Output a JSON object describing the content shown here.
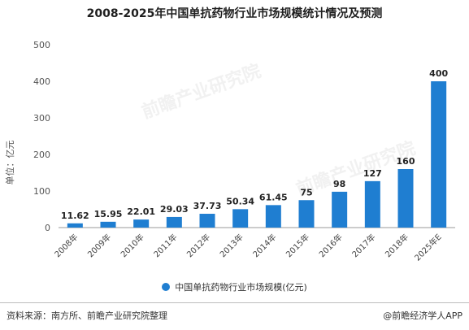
{
  "title": "2008-2025年中国单抗药物行业市场规模统计情况及预测",
  "ylabel": "单位：亿元",
  "legend_label": "中国单抗药物行业市场规模(亿元)",
  "source": "资料来源：南方所、前瞻产业研究院整理",
  "brand": "@前瞻经济学人APP",
  "watermarks": [
    "前瞻产业研究院",
    "前瞻产业研究院"
  ],
  "colors": {
    "bar": "#1f7ed1",
    "axis": "#999999",
    "grid": "#e6e6e6"
  },
  "chart_data": {
    "type": "bar",
    "categories": [
      "2008年",
      "2009年",
      "2010年",
      "2011年",
      "2012年",
      "2013年",
      "2014年",
      "2015年",
      "2016年",
      "2017年",
      "2018年",
      "2025年E"
    ],
    "values": [
      11.62,
      15.95,
      22.01,
      29.03,
      37.73,
      50.34,
      61.45,
      75,
      98,
      127,
      160,
      400
    ],
    "labels": [
      "11.62",
      "15.95",
      "22.01",
      "29.03",
      "37.73",
      "50.34",
      "61.45",
      "75",
      "98",
      "127",
      "160",
      "400"
    ],
    "yticks": [
      0,
      100,
      200,
      300,
      400,
      500
    ],
    "ylim": [
      0,
      500
    ],
    "grid": false,
    "legend": "bottom-center"
  }
}
